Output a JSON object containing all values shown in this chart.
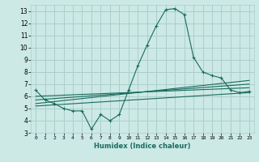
{
  "xlabel": "Humidex (Indice chaleur)",
  "ylabel": "",
  "background_color": "#cce9e5",
  "grid_color": "#aacfcc",
  "line_color": "#1a6b5e",
  "xlim": [
    -0.5,
    23.5
  ],
  "ylim": [
    3,
    13.5
  ],
  "yticks": [
    3,
    4,
    5,
    6,
    7,
    8,
    9,
    10,
    11,
    12,
    13
  ],
  "xticks": [
    0,
    1,
    2,
    3,
    4,
    5,
    6,
    7,
    8,
    9,
    10,
    11,
    12,
    13,
    14,
    15,
    16,
    17,
    18,
    19,
    20,
    21,
    22,
    23
  ],
  "main_x": [
    0,
    1,
    2,
    3,
    4,
    5,
    6,
    7,
    8,
    9,
    10,
    11,
    12,
    13,
    14,
    15,
    16,
    17,
    18,
    19,
    20,
    21,
    22,
    23
  ],
  "main_y": [
    6.5,
    5.7,
    5.4,
    5.0,
    4.8,
    4.8,
    3.3,
    4.5,
    4.0,
    4.5,
    6.5,
    8.5,
    10.2,
    11.8,
    13.1,
    13.2,
    12.7,
    9.2,
    8.0,
    7.7,
    7.5,
    6.5,
    6.3,
    6.4
  ],
  "line1_x": [
    0,
    23
  ],
  "line1_y": [
    6.0,
    6.7
  ],
  "line2_x": [
    0,
    23
  ],
  "line2_y": [
    5.7,
    7.0
  ],
  "line3_x": [
    0,
    23
  ],
  "line3_y": [
    5.4,
    7.3
  ],
  "line4_x": [
    0,
    23
  ],
  "line4_y": [
    5.2,
    6.3
  ]
}
